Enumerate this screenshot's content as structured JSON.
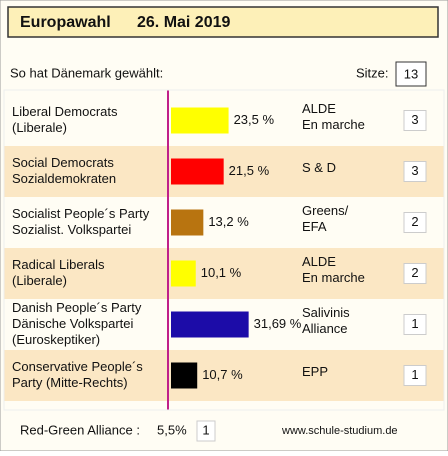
{
  "header": {
    "title": "Europawahl",
    "date": "26. Mai 2019"
  },
  "intro": "So hat Dänemark gewählt:",
  "seats_label": "Sitze:",
  "seats_total": 13,
  "rows": [
    {
      "name": [
        "Liberal Democrats",
        "(Liberale)"
      ],
      "value": 23.5,
      "value_label": "23,5 %",
      "color": "#ffff00",
      "group": [
        "ALDE",
        "En marche"
      ],
      "seats": 3
    },
    {
      "name": [
        "Social Democrats",
        "Sozialdemokraten"
      ],
      "value": 21.5,
      "value_label": "21,5 %",
      "color": "#ff0000",
      "group": [
        "S & D"
      ],
      "seats": 3
    },
    {
      "name": [
        "Socialist People´s Party",
        "Sozialist. Volkspartei"
      ],
      "value": 13.2,
      "value_label": "13,2 %",
      "color": "#b87410",
      "group": [
        "Greens/",
        "EFA"
      ],
      "seats": 2
    },
    {
      "name": [
        "Radical Liberals",
        "(Liberale)"
      ],
      "value": 10.1,
      "value_label": "10,1 %",
      "color": "#ffff00",
      "group": [
        "ALDE",
        "En marche"
      ],
      "seats": 2
    },
    {
      "name": [
        "Danish People´s Party",
        "Dänische Volkspartei",
        "(Euroskeptiker)"
      ],
      "value": 31.69,
      "value_label": "31,69 %",
      "color": "#1c0ca8",
      "group": [
        "Salivinis",
        "Alliance"
      ],
      "seats": 1
    },
    {
      "name": [
        "Conservative People´s",
        "Party (Mitte-Rechts)"
      ],
      "value": 10.7,
      "value_label": "10,7 %",
      "color": "#000000",
      "group": [
        "EPP"
      ],
      "seats": 1
    }
  ],
  "footer": {
    "party": "Red-Green Alliance :",
    "value_label": "5,5%",
    "value": 5.5,
    "seats": 1,
    "url": "www.schule-studium.de"
  }
}
